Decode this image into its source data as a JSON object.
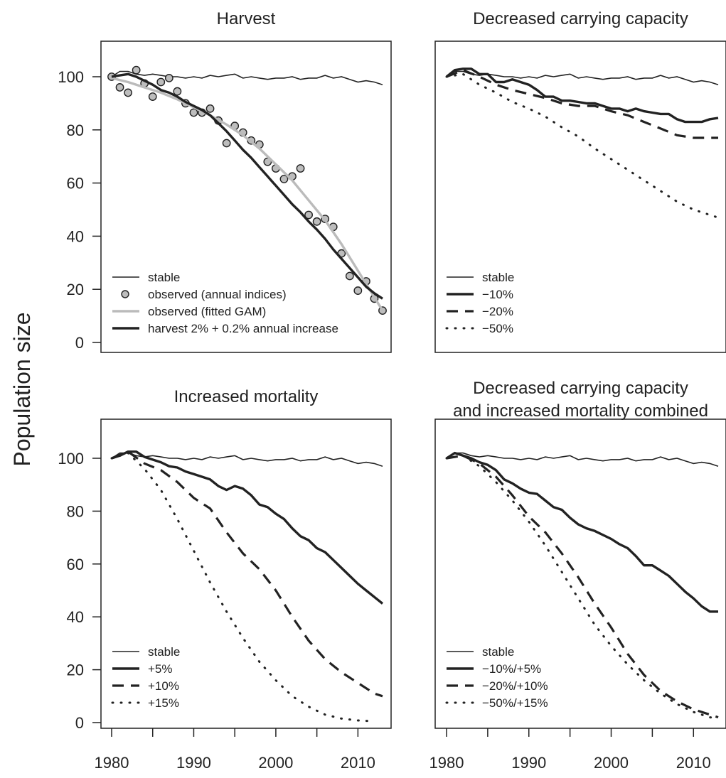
{
  "figure": {
    "ylabel": "Population size"
  },
  "colors": {
    "ink": "#222222",
    "gam": "#bbbbbb",
    "point_fill": "#bdbdbd"
  },
  "chart_data": [
    {
      "type": "line",
      "title": "Harvest",
      "title2": "",
      "xlim": [
        1980,
        2013
      ],
      "ylim": [
        0,
        110
      ],
      "yticks": [
        0,
        20,
        40,
        60,
        80,
        100
      ],
      "xticks": [
        1980,
        1990,
        2000,
        2010
      ],
      "show_xlabels": false,
      "legend": "bottom-left",
      "series": [
        {
          "name": "stable",
          "style": "thin",
          "x": [
            1980,
            1981,
            1982,
            1983,
            1984,
            1985,
            1986,
            1987,
            1988,
            1989,
            1990,
            1991,
            1992,
            1993,
            1994,
            1995,
            1996,
            1997,
            1998,
            1999,
            2000,
            2001,
            2002,
            2003,
            2004,
            2005,
            2006,
            2007,
            2008,
            2009,
            2010,
            2011,
            2012,
            2013
          ],
          "y": [
            100,
            102,
            102,
            101,
            100.5,
            101,
            100.5,
            100,
            100,
            99.5,
            100,
            99.5,
            100.5,
            100,
            100.5,
            101,
            99.5,
            100,
            99.5,
            99,
            99.5,
            99.5,
            100,
            99,
            99.5,
            99.5,
            100.5,
            99.5,
            100,
            99,
            98,
            98.5,
            98,
            97
          ]
        },
        {
          "name": "observed (annual indices)",
          "style": "points",
          "x": [
            1980,
            1981,
            1982,
            1983,
            1984,
            1985,
            1986,
            1987,
            1988,
            1989,
            1990,
            1991,
            1992,
            1993,
            1994,
            1995,
            1996,
            1997,
            1998,
            1999,
            2000,
            2001,
            2002,
            2003,
            2004,
            2005,
            2006,
            2007,
            2008,
            2009,
            2010,
            2011,
            2012,
            2013
          ],
          "y": [
            100,
            96,
            94,
            102.5,
            97.5,
            92.5,
            98,
            99.5,
            94.5,
            90,
            86.5,
            86.5,
            88,
            83.5,
            75,
            81.5,
            79,
            76,
            74.5,
            68,
            65.5,
            61.5,
            62.5,
            65.5,
            48,
            45.5,
            46.5,
            43.5,
            33.5,
            25,
            19.5,
            23,
            16.5,
            12
          ]
        },
        {
          "name": "observed (fitted GAM)",
          "style": "gray",
          "x": [
            1980,
            1982,
            1984,
            1986,
            1988,
            1990,
            1992,
            1994,
            1996,
            1998,
            2000,
            2002,
            2004,
            2006,
            2008,
            2010,
            2012,
            2013
          ],
          "y": [
            99.5,
            98,
            96,
            94,
            91.5,
            88.5,
            85.5,
            82,
            78,
            73,
            67,
            61,
            53.5,
            46,
            37,
            27,
            17,
            12
          ]
        },
        {
          "name": "harvest 2% + 0.2% annual increase",
          "style": "thick",
          "x": [
            1980,
            1981,
            1982,
            1983,
            1984,
            1985,
            1986,
            1987,
            1988,
            1989,
            1990,
            1991,
            1992,
            1993,
            1994,
            1995,
            1996,
            1997,
            1998,
            1999,
            2000,
            2001,
            2002,
            2003,
            2004,
            2005,
            2006,
            2007,
            2008,
            2009,
            2010,
            2011,
            2012,
            2013
          ],
          "y": [
            100,
            100.5,
            101,
            100,
            98.5,
            97,
            95,
            94,
            92.5,
            90.5,
            89,
            87.5,
            85.5,
            82.5,
            79.5,
            76,
            72.5,
            69.5,
            66,
            62.5,
            59,
            55.5,
            52,
            49,
            45.5,
            42.5,
            39,
            35,
            31.5,
            28,
            24.5,
            21,
            18.5,
            16.5
          ]
        }
      ]
    },
    {
      "type": "line",
      "title": "Decreased carrying capacity",
      "title2": "",
      "xlim": [
        1980,
        2013
      ],
      "ylim": [
        0,
        110
      ],
      "yticks": [
        0,
        20,
        40,
        60,
        80,
        100
      ],
      "xticks": [
        1980,
        1990,
        2000,
        2010
      ],
      "show_xlabels": false,
      "legend": "bottom-left",
      "series": [
        {
          "name": "stable",
          "style": "thin",
          "x": [
            1980,
            1981,
            1982,
            1983,
            1984,
            1985,
            1986,
            1987,
            1988,
            1989,
            1990,
            1991,
            1992,
            1993,
            1994,
            1995,
            1996,
            1997,
            1998,
            1999,
            2000,
            2001,
            2002,
            2003,
            2004,
            2005,
            2006,
            2007,
            2008,
            2009,
            2010,
            2011,
            2012,
            2013
          ],
          "y": [
            100,
            102,
            102,
            101,
            100.5,
            101,
            100.5,
            100,
            100,
            99.5,
            100,
            99.5,
            100.5,
            100,
            100.5,
            101,
            99.5,
            100,
            99.5,
            99,
            99.5,
            99.5,
            100,
            99,
            99.5,
            99.5,
            100.5,
            99.5,
            100,
            99,
            98,
            98.5,
            98,
            97
          ]
        },
        {
          "name": "−10%",
          "style": "thick",
          "x": [
            1980,
            1981,
            1982,
            1983,
            1984,
            1985,
            1986,
            1987,
            1988,
            1989,
            1990,
            1991,
            1992,
            1993,
            1994,
            1995,
            1996,
            1997,
            1998,
            1999,
            2000,
            2001,
            2002,
            2003,
            2004,
            2005,
            2006,
            2007,
            2008,
            2009,
            2010,
            2011,
            2012,
            2013
          ],
          "y": [
            100,
            102.5,
            103,
            103,
            101,
            101,
            98,
            98,
            99,
            98,
            97,
            95,
            92.5,
            92.5,
            91,
            91,
            90.5,
            90,
            90,
            89,
            88,
            88,
            87,
            88,
            87,
            86.5,
            86,
            86,
            84,
            83,
            83,
            83,
            84,
            84.5
          ]
        },
        {
          "name": "−20%",
          "style": "dashed",
          "x": [
            1980,
            1982,
            1984,
            1986,
            1988,
            1990,
            1992,
            1994,
            1996,
            1998,
            2000,
            2002,
            2004,
            2006,
            2008,
            2010,
            2012,
            2013
          ],
          "y": [
            100,
            102.5,
            100,
            97,
            95,
            93.5,
            92,
            90,
            89,
            89,
            87,
            85.5,
            83,
            80.5,
            78,
            77,
            77,
            77
          ]
        },
        {
          "name": "−50%",
          "style": "dotted",
          "x": [
            1980,
            1982,
            1984,
            1986,
            1988,
            1990,
            1992,
            1994,
            1996,
            1998,
            2000,
            2002,
            2004,
            2006,
            2008,
            2010,
            2012,
            2013
          ],
          "y": [
            100,
            101,
            97,
            94,
            90.5,
            88,
            85,
            81,
            77.5,
            73,
            69,
            65,
            61,
            57,
            53,
            50,
            48,
            47
          ]
        }
      ]
    },
    {
      "type": "line",
      "title": "Increased mortality",
      "title2": "",
      "xlim": [
        1980,
        2013
      ],
      "ylim": [
        0,
        110
      ],
      "yticks": [
        0,
        20,
        40,
        60,
        80,
        100
      ],
      "xticks": [
        1980,
        1990,
        2000,
        2010
      ],
      "show_xlabels": true,
      "legend": "bottom-left",
      "series": [
        {
          "name": "stable",
          "style": "thin",
          "x": [
            1980,
            1981,
            1982,
            1983,
            1984,
            1985,
            1986,
            1987,
            1988,
            1989,
            1990,
            1991,
            1992,
            1993,
            1994,
            1995,
            1996,
            1997,
            1998,
            1999,
            2000,
            2001,
            2002,
            2003,
            2004,
            2005,
            2006,
            2007,
            2008,
            2009,
            2010,
            2011,
            2012,
            2013
          ],
          "y": [
            100,
            102,
            102,
            101,
            100.5,
            101,
            100.5,
            100,
            100,
            99.5,
            100,
            99.5,
            100.5,
            100,
            100.5,
            101,
            99.5,
            100,
            99.5,
            99,
            99.5,
            99.5,
            100,
            99,
            99.5,
            99.5,
            100.5,
            99.5,
            100,
            99,
            98,
            98.5,
            98,
            97
          ]
        },
        {
          "name": "+5%",
          "style": "thick",
          "x": [
            1980,
            1981,
            1982,
            1983,
            1984,
            1985,
            1986,
            1987,
            1988,
            1989,
            1990,
            1991,
            1992,
            1993,
            1994,
            1995,
            1996,
            1997,
            1998,
            1999,
            2000,
            2001,
            2002,
            2003,
            2004,
            2005,
            2006,
            2007,
            2008,
            2009,
            2010,
            2011,
            2012,
            2013
          ],
          "y": [
            100,
            101,
            102.5,
            102.5,
            100.5,
            99.5,
            98.5,
            97,
            96.5,
            95,
            94,
            93,
            92,
            89.5,
            88,
            89.5,
            88.5,
            86,
            82.5,
            81.5,
            79,
            77,
            73.5,
            70.5,
            69,
            66,
            64.5,
            61.5,
            58.5,
            55.5,
            52.5,
            50,
            47.5,
            45
          ]
        },
        {
          "name": "+10%",
          "style": "dashed",
          "x": [
            1980,
            1982,
            1984,
            1986,
            1988,
            1990,
            1992,
            1994,
            1996,
            1998,
            2000,
            2002,
            2004,
            2006,
            2008,
            2010,
            2012,
            2013
          ],
          "y": [
            100,
            102.5,
            98,
            95.5,
            91,
            85,
            81,
            72,
            64,
            58,
            50,
            40,
            31,
            24,
            19,
            15,
            11,
            10
          ]
        },
        {
          "name": "+15%",
          "style": "dotted",
          "x": [
            1980,
            1982,
            1984,
            1986,
            1988,
            1990,
            1992,
            1994,
            1996,
            1998,
            2000,
            2002,
            2004,
            2006,
            2008,
            2010,
            2012
          ],
          "y": [
            100,
            102,
            96,
            88,
            77,
            65,
            53,
            42,
            32,
            23,
            16,
            10,
            6,
            3,
            1.5,
            0.8,
            0.5
          ]
        }
      ]
    },
    {
      "type": "line",
      "title": "Decreased carrying capacity",
      "title2": "and increased mortality combined",
      "xlim": [
        1980,
        2013
      ],
      "ylim": [
        0,
        110
      ],
      "yticks": [
        0,
        20,
        40,
        60,
        80,
        100
      ],
      "xticks": [
        1980,
        1990,
        2000,
        2010
      ],
      "show_xlabels": true,
      "legend": "bottom-left",
      "series": [
        {
          "name": "stable",
          "style": "thin",
          "x": [
            1980,
            1981,
            1982,
            1983,
            1984,
            1985,
            1986,
            1987,
            1988,
            1989,
            1990,
            1991,
            1992,
            1993,
            1994,
            1995,
            1996,
            1997,
            1998,
            1999,
            2000,
            2001,
            2002,
            2003,
            2004,
            2005,
            2006,
            2007,
            2008,
            2009,
            2010,
            2011,
            2012,
            2013
          ],
          "y": [
            100,
            102,
            102,
            101,
            100.5,
            101,
            100.5,
            100,
            100,
            99.5,
            100,
            99.5,
            100.5,
            100,
            100.5,
            101,
            99.5,
            100,
            99.5,
            99,
            99.5,
            99.5,
            100,
            99,
            99.5,
            99.5,
            100.5,
            99.5,
            100,
            99,
            98,
            98.5,
            98,
            97
          ]
        },
        {
          "name": "−10%/+5%",
          "style": "thick",
          "x": [
            1980,
            1981,
            1982,
            1983,
            1984,
            1985,
            1986,
            1987,
            1988,
            1989,
            1990,
            1991,
            1992,
            1993,
            1994,
            1995,
            1996,
            1997,
            1998,
            1999,
            2000,
            2001,
            2002,
            2003,
            2004,
            2005,
            2006,
            2007,
            2008,
            2009,
            2010,
            2011,
            2012,
            2013
          ],
          "y": [
            100,
            102,
            101,
            100,
            98.5,
            97.5,
            95.5,
            92,
            90.5,
            88.5,
            87,
            86.5,
            84,
            81.5,
            80.5,
            77.5,
            75,
            73.5,
            72.5,
            71,
            69.5,
            67.5,
            66,
            63,
            59.5,
            59.5,
            57.5,
            55.5,
            52.5,
            49.5,
            47,
            44,
            42,
            42
          ]
        },
        {
          "name": "−20%/+10%",
          "style": "dashed",
          "x": [
            1980,
            1982,
            1984,
            1986,
            1988,
            1990,
            1992,
            1994,
            1996,
            1998,
            2000,
            2002,
            2004,
            2006,
            2008,
            2010,
            2012,
            2013
          ],
          "y": [
            100,
            101,
            98,
            93,
            86,
            78,
            72,
            64,
            55,
            45,
            36,
            26,
            18,
            12,
            8,
            5,
            3,
            2
          ]
        },
        {
          "name": "−50%/+15%",
          "style": "dotted",
          "x": [
            1980,
            1982,
            1984,
            1986,
            1988,
            1990,
            1992,
            1994,
            1996,
            1998,
            2000,
            2002,
            2004,
            2006,
            2008,
            2010,
            2012,
            2013
          ],
          "y": [
            100,
            101,
            97,
            91,
            84,
            76,
            67,
            57,
            47,
            37,
            29,
            22,
            16,
            11,
            7,
            4,
            2,
            1.5
          ]
        }
      ]
    }
  ]
}
